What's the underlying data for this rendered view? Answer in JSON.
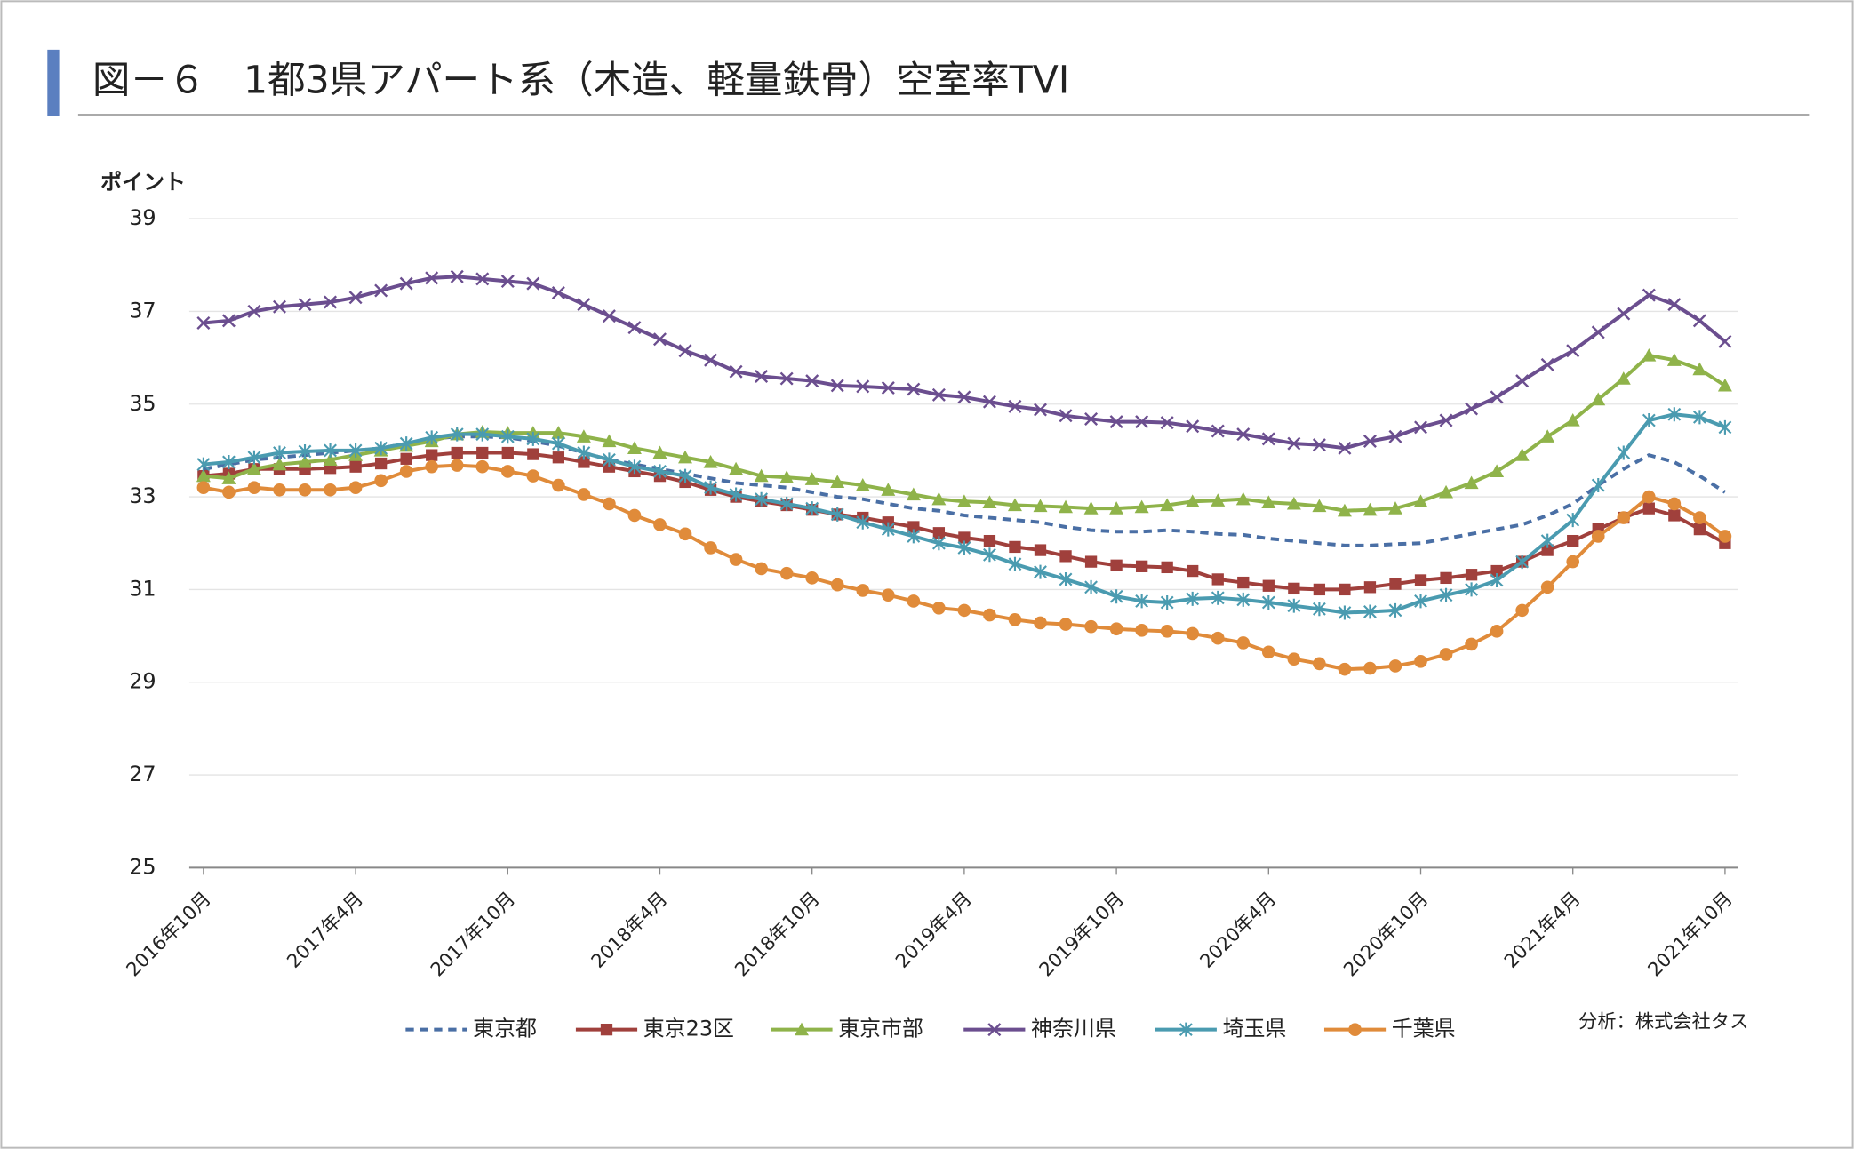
{
  "chart_data": {
    "type": "line",
    "title": "図－６　1都3県アパート系（木造、軽量鉄骨）空室率TVI",
    "y_label": "ポイント",
    "source": "分析：株式会社タス",
    "ylim": [
      25,
      39
    ],
    "yticks": [
      25,
      27,
      29,
      31,
      33,
      35,
      37,
      39
    ],
    "grid": true,
    "categories": [
      "2016年10月",
      null,
      null,
      null,
      null,
      null,
      "2017年4月",
      null,
      null,
      null,
      null,
      null,
      "2017年10月",
      null,
      null,
      null,
      null,
      null,
      "2018年4月",
      null,
      null,
      null,
      null,
      null,
      "2018年10月",
      null,
      null,
      null,
      null,
      null,
      "2019年4月",
      null,
      null,
      null,
      null,
      null,
      "2019年10月",
      null,
      null,
      null,
      null,
      null,
      "2020年4月",
      null,
      null,
      null,
      null,
      null,
      "2020年10月",
      null,
      null,
      null,
      null,
      null,
      "2021年4月",
      null,
      null,
      null,
      null,
      null,
      "2021年10月"
    ],
    "series": [
      {
        "name": "東京都",
        "color": "#4a6fa5",
        "marker": "none",
        "dashed": true,
        "values": [
          33.6,
          33.7,
          33.8,
          33.85,
          33.9,
          33.95,
          34.0,
          34.05,
          34.15,
          34.25,
          34.3,
          34.3,
          34.28,
          34.2,
          34.1,
          33.95,
          33.8,
          33.7,
          33.6,
          33.5,
          33.4,
          33.3,
          33.25,
          33.2,
          33.1,
          33.0,
          32.95,
          32.85,
          32.75,
          32.7,
          32.6,
          32.55,
          32.5,
          32.45,
          32.35,
          32.28,
          32.25,
          32.25,
          32.28,
          32.25,
          32.2,
          32.18,
          32.1,
          32.05,
          32.0,
          31.95,
          31.95,
          31.98,
          32.0,
          32.1,
          32.2,
          32.3,
          32.4,
          32.6,
          32.85,
          33.25,
          33.6,
          33.9,
          33.75,
          33.45,
          33.1
        ]
      },
      {
        "name": "東京23区",
        "color": "#a0403c",
        "marker": "square",
        "dashed": false,
        "values": [
          33.45,
          33.5,
          33.6,
          33.6,
          33.6,
          33.62,
          33.65,
          33.72,
          33.82,
          33.9,
          33.95,
          33.95,
          33.95,
          33.92,
          33.85,
          33.75,
          33.65,
          33.55,
          33.45,
          33.32,
          33.15,
          33.0,
          32.9,
          32.82,
          32.72,
          32.62,
          32.55,
          32.45,
          32.35,
          32.22,
          32.12,
          32.05,
          31.92,
          31.85,
          31.72,
          31.6,
          31.52,
          31.5,
          31.48,
          31.4,
          31.22,
          31.15,
          31.08,
          31.02,
          31.0,
          31.0,
          31.05,
          31.12,
          31.2,
          31.25,
          31.32,
          31.4,
          31.6,
          31.85,
          32.05,
          32.3,
          32.55,
          32.75,
          32.6,
          32.3,
          32.0
        ]
      },
      {
        "name": "東京市部",
        "color": "#8fb34a",
        "marker": "triangle",
        "dashed": false,
        "values": [
          33.45,
          33.4,
          33.6,
          33.7,
          33.75,
          33.8,
          33.9,
          34.0,
          34.1,
          34.2,
          34.35,
          34.4,
          34.38,
          34.38,
          34.38,
          34.3,
          34.2,
          34.05,
          33.95,
          33.85,
          33.75,
          33.6,
          33.45,
          33.42,
          33.38,
          33.32,
          33.25,
          33.15,
          33.05,
          32.95,
          32.9,
          32.88,
          32.82,
          32.8,
          32.78,
          32.75,
          32.75,
          32.78,
          32.82,
          32.9,
          32.92,
          32.95,
          32.88,
          32.85,
          32.8,
          32.7,
          32.72,
          32.75,
          32.9,
          33.1,
          33.3,
          33.55,
          33.9,
          34.3,
          34.65,
          35.1,
          35.55,
          36.05,
          35.95,
          35.75,
          35.4
        ]
      },
      {
        "name": "神奈川県",
        "color": "#6b4e8f",
        "marker": "x",
        "dashed": false,
        "values": [
          36.75,
          36.8,
          37.0,
          37.1,
          37.15,
          37.2,
          37.3,
          37.45,
          37.6,
          37.72,
          37.75,
          37.7,
          37.65,
          37.6,
          37.4,
          37.15,
          36.9,
          36.65,
          36.4,
          36.15,
          35.95,
          35.7,
          35.6,
          35.55,
          35.5,
          35.4,
          35.38,
          35.35,
          35.32,
          35.2,
          35.15,
          35.05,
          34.95,
          34.88,
          34.75,
          34.68,
          34.62,
          34.62,
          34.6,
          34.52,
          34.42,
          34.35,
          34.25,
          34.15,
          34.12,
          34.05,
          34.2,
          34.3,
          34.5,
          34.65,
          34.9,
          35.15,
          35.5,
          35.85,
          36.15,
          36.55,
          36.95,
          37.35,
          37.15,
          36.8,
          36.35
        ]
      },
      {
        "name": "埼玉県",
        "color": "#4a9bb0",
        "marker": "star",
        "dashed": false,
        "values": [
          33.7,
          33.75,
          33.85,
          33.95,
          33.98,
          34.0,
          34.0,
          34.05,
          34.15,
          34.28,
          34.35,
          34.35,
          34.3,
          34.25,
          34.15,
          33.95,
          33.8,
          33.65,
          33.55,
          33.45,
          33.2,
          33.05,
          32.95,
          32.85,
          32.75,
          32.62,
          32.45,
          32.3,
          32.15,
          32.0,
          31.9,
          31.75,
          31.55,
          31.38,
          31.22,
          31.05,
          30.85,
          30.75,
          30.72,
          30.8,
          30.82,
          30.78,
          30.72,
          30.65,
          30.58,
          30.5,
          30.52,
          30.55,
          30.75,
          30.88,
          31.0,
          31.2,
          31.6,
          32.05,
          32.5,
          33.25,
          33.95,
          34.65,
          34.78,
          34.72,
          34.5
        ]
      },
      {
        "name": "千葉県",
        "color": "#e08b3a",
        "marker": "circle",
        "dashed": false,
        "values": [
          33.2,
          33.1,
          33.2,
          33.15,
          33.15,
          33.15,
          33.2,
          33.35,
          33.55,
          33.65,
          33.68,
          33.65,
          33.55,
          33.45,
          33.25,
          33.05,
          32.85,
          32.6,
          32.4,
          32.2,
          31.9,
          31.65,
          31.45,
          31.35,
          31.25,
          31.1,
          30.98,
          30.88,
          30.75,
          30.6,
          30.55,
          30.45,
          30.35,
          30.28,
          30.25,
          30.2,
          30.15,
          30.12,
          30.1,
          30.05,
          29.95,
          29.85,
          29.65,
          29.5,
          29.4,
          29.28,
          29.3,
          29.35,
          29.45,
          29.6,
          29.82,
          30.1,
          30.55,
          31.05,
          31.6,
          32.15,
          32.55,
          33.0,
          32.85,
          32.55,
          32.15
        ]
      }
    ]
  }
}
